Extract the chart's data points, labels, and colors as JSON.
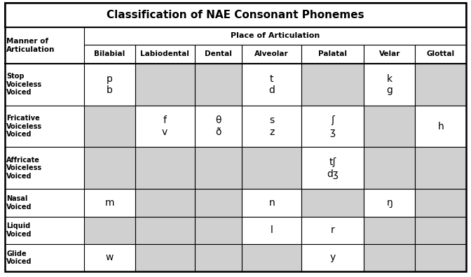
{
  "title": "Classification of NAE Consonant Phonemes",
  "place_labels": [
    "Bilabial",
    "Labiodental",
    "Dental",
    "Alveolar",
    "Palatal",
    "Velar",
    "Glottal"
  ],
  "manner_labels": [
    "Stop\nVoiceless\nVoiced",
    "Fricative\nVoiceless\nVoiced",
    "Affricate\nVoiceless\nVoiced",
    "Nasal\nVoiced",
    "Liquid\nVoiced",
    "Glide\nVoiced"
  ],
  "cells": [
    [
      "p\nb",
      "",
      "",
      "t\nd",
      "",
      "k\ng",
      ""
    ],
    [
      "",
      "f\nv",
      "θ\nð",
      "s\nz",
      "ʃ\nʒ",
      "",
      "h"
    ],
    [
      "",
      "",
      "",
      "",
      "tʃ\ndʒ",
      "",
      ""
    ],
    [
      "m",
      "",
      "",
      "n",
      "",
      "ŋ",
      ""
    ],
    [
      "",
      "",
      "",
      "l",
      "r",
      "",
      ""
    ],
    [
      "w",
      "",
      "",
      "",
      "y",
      "",
      ""
    ]
  ],
  "bg_white": "#ffffff",
  "bg_gray": "#d0d0d0",
  "border_color": "#000000",
  "title_fontsize": 11,
  "header_fontsize": 7.5,
  "cell_fontsize": 10,
  "manner_fontsize": 7.0,
  "shade_pattern": [
    [
      0,
      0,
      1,
      1,
      0,
      1,
      0,
      1
    ],
    [
      0,
      1,
      0,
      0,
      0,
      0,
      1,
      0
    ],
    [
      0,
      1,
      1,
      1,
      1,
      0,
      1,
      1
    ],
    [
      0,
      0,
      1,
      1,
      0,
      1,
      0,
      1
    ],
    [
      0,
      1,
      1,
      1,
      0,
      0,
      1,
      1
    ],
    [
      0,
      0,
      1,
      1,
      1,
      0,
      1,
      1
    ]
  ]
}
